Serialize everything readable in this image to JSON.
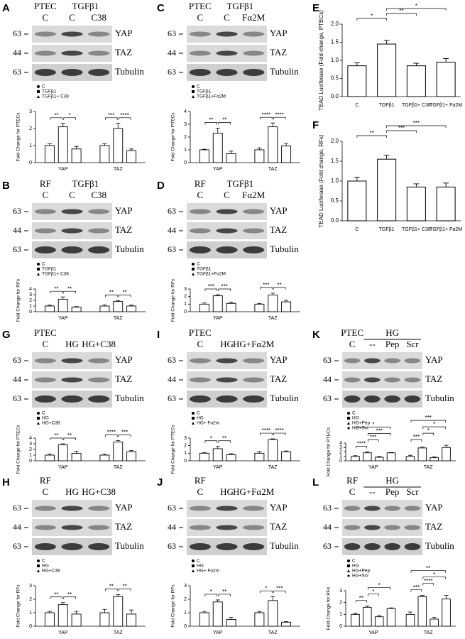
{
  "panels": [
    {
      "letter": "A",
      "header": {
        "top": [
          "PTEC",
          "TGFβ1"
        ],
        "lanes": [
          "C",
          "C",
          "C38"
        ]
      },
      "blot": [
        {
          "marker": "63",
          "protein": "YAP"
        },
        {
          "marker": "44",
          "protein": "TAZ"
        },
        {
          "marker": "63",
          "protein": "Tubulin"
        }
      ],
      "chart_data": {
        "type": "bar",
        "ylabel": "Fold Change for PTECs",
        "categories": [
          "YAP",
          "TAZ"
        ],
        "series": [
          {
            "name": "C",
            "values": [
              1.0,
              1.0
            ],
            "errors": [
              0.1,
              0.1
            ]
          },
          {
            "name": "TGFβ1",
            "values": [
              2.1,
              2.0
            ],
            "errors": [
              0.2,
              0.3
            ]
          },
          {
            "name": "TGFβ1+ C38",
            "values": [
              0.8,
              0.7
            ],
            "errors": [
              0.15,
              0.1
            ]
          }
        ],
        "ylim": [
          0,
          3
        ],
        "yticks": [
          0,
          1,
          2,
          3
        ],
        "significance": [
          [
            "**",
            "*"
          ],
          [
            "***",
            "****"
          ]
        ]
      }
    },
    {
      "letter": "C",
      "header": {
        "top": [
          "PTEC",
          "TGFβ1"
        ],
        "lanes": [
          "C",
          "C",
          "Fα2M"
        ]
      },
      "blot": [
        {
          "marker": "63",
          "protein": "YAP"
        },
        {
          "marker": "44",
          "protein": "TAZ"
        },
        {
          "marker": "63",
          "protein": "Tubulin"
        }
      ],
      "chart_data": {
        "type": "bar",
        "ylabel": "Fold Change for PTECs",
        "categories": [
          "YAP",
          "TAZ"
        ],
        "series": [
          {
            "name": "C",
            "values": [
              1.0,
              1.0
            ],
            "errors": [
              0.05,
              0.15
            ]
          },
          {
            "name": "TGFβ1",
            "values": [
              2.3,
              2.8
            ],
            "errors": [
              0.4,
              0.3
            ]
          },
          {
            "name": "TGFβ1+Fα2M",
            "values": [
              0.7,
              1.3
            ],
            "errors": [
              0.2,
              0.2
            ]
          }
        ],
        "ylim": [
          0,
          4
        ],
        "yticks": [
          0,
          1,
          2,
          3,
          4
        ],
        "significance": [
          [
            "**",
            "**"
          ],
          [
            "****",
            "****"
          ]
        ]
      }
    },
    {
      "letter": "E",
      "chart_data": {
        "type": "bar",
        "ylabel": "TEAD Luciferase (Fold change, PTECs)",
        "categories": [
          "C",
          "TGFβ1",
          "TGFβ1+ C38",
          "TGFβ1+ Fα2M"
        ],
        "values": [
          0.85,
          1.45,
          0.85,
          0.95
        ],
        "errors": [
          0.08,
          0.1,
          0.07,
          0.1
        ],
        "ylim": [
          0,
          2
        ],
        "yticks": [
          {
            "value": 0,
            "label": "0.0"
          },
          {
            "value": 0.5,
            "label": "0.5"
          },
          {
            "value": 1,
            "label": "1.0"
          },
          {
            "value": 1.5,
            "label": "1.5"
          },
          {
            "value": 2,
            "label": "2.0"
          }
        ],
        "significance": [
          "*",
          "**",
          "*"
        ]
      }
    },
    {
      "letter": "B",
      "header": {
        "top": [
          "RF",
          "TGFβ1"
        ],
        "lanes": [
          "C",
          "C",
          "C38"
        ]
      },
      "blot": [
        {
          "marker": "63",
          "protein": "YAP"
        },
        {
          "marker": "44",
          "protein": "TAZ"
        },
        {
          "marker": "63",
          "protein": "Tubulin"
        }
      ],
      "chart_data": {
        "type": "bar",
        "ylabel": "Fold Change for RFs",
        "categories": [
          "YAP",
          "TAZ"
        ],
        "series": [
          {
            "name": "C",
            "values": [
              1.0,
              1.0
            ],
            "errors": [
              0.15,
              0.2
            ]
          },
          {
            "name": "TGFβ1",
            "values": [
              2.2,
              1.8
            ],
            "errors": [
              0.4,
              0.15
            ]
          },
          {
            "name": "TGFβ1+ C38",
            "values": [
              0.8,
              1.0
            ],
            "errors": [
              0.1,
              0.15
            ]
          }
        ],
        "ylim": [
          0,
          4
        ],
        "yticks": [
          0,
          1,
          2,
          3,
          4
        ],
        "significance": [
          [
            "**",
            "**"
          ],
          [
            "**",
            "**"
          ]
        ]
      }
    },
    {
      "letter": "D",
      "header": {
        "top": [
          "RF",
          "TGFβ1"
        ],
        "lanes": [
          "C",
          "C",
          "Fα2M"
        ]
      },
      "blot": [
        {
          "marker": "63",
          "protein": "YAP"
        },
        {
          "marker": "44",
          "protein": "TAZ"
        },
        {
          "marker": "63",
          "protein": "Tubulin"
        }
      ],
      "chart_data": {
        "type": "bar",
        "ylabel": "Fold Change for RFs",
        "categories": [
          "YAP",
          "TAZ"
        ],
        "series": [
          {
            "name": "C",
            "values": [
              1.0,
              1.0
            ],
            "errors": [
              0.15,
              0.1
            ]
          },
          {
            "name": "TGFβ1",
            "values": [
              2.1,
              2.2
            ],
            "errors": [
              0.15,
              0.25
            ]
          },
          {
            "name": "TGFβ1+Fα2M",
            "values": [
              1.1,
              1.3
            ],
            "errors": [
              0.15,
              0.2
            ]
          }
        ],
        "ylim": [
          0,
          3
        ],
        "yticks": [
          0,
          1,
          2,
          3
        ],
        "significance": [
          [
            "***",
            "***"
          ],
          [
            "***",
            "**"
          ]
        ]
      }
    },
    {
      "letter": "F",
      "chart_data": {
        "type": "bar",
        "ylabel": "TEAD Luciferase (Fold change, RFs)",
        "categories": [
          "C",
          "TGFβ1",
          "TGFβ1+ C38",
          "TGFβ1+ Fα2M"
        ],
        "values": [
          1.0,
          1.55,
          0.85,
          0.85
        ],
        "errors": [
          0.1,
          0.1,
          0.08,
          0.1
        ],
        "ylim": [
          0,
          2
        ],
        "yticks": [
          {
            "value": 0,
            "label": "0.0"
          },
          {
            "value": 0.5,
            "label": "0.5"
          },
          {
            "value": 1,
            "label": "1.0"
          },
          {
            "value": 1.5,
            "label": "1.5"
          },
          {
            "value": 2,
            "label": "2.0"
          }
        ],
        "significance": [
          "**",
          "***",
          "***"
        ]
      }
    },
    {
      "letter": "G",
      "header": {
        "top": [
          "PTEC"
        ],
        "lanes": [
          "C",
          "HG",
          "HG+C38"
        ]
      },
      "blot": [
        {
          "marker": "63",
          "protein": "YAP"
        },
        {
          "marker": "44",
          "protein": "TAZ"
        },
        {
          "marker": "63",
          "protein": "Tubulin"
        }
      ],
      "chart_data": {
        "type": "bar",
        "ylabel": "Fold Change for PTECs",
        "categories": [
          "YAP",
          "TAZ"
        ],
        "series": [
          {
            "name": "C",
            "values": [
              1.0,
              1.0
            ],
            "errors": [
              0.2,
              0.2
            ]
          },
          {
            "name": "HG",
            "values": [
              2.8,
              3.3
            ],
            "errors": [
              0.2,
              0.25
            ]
          },
          {
            "name": "HG+C38",
            "values": [
              1.3,
              1.6
            ],
            "errors": [
              0.4,
              0.2
            ]
          }
        ],
        "ylim": [
          0,
          4
        ],
        "yticks": [
          0,
          1,
          2,
          3,
          4
        ],
        "significance": [
          [
            "**",
            "**"
          ],
          [
            "****",
            "***"
          ]
        ]
      }
    },
    {
      "letter": "I",
      "header": {
        "top": [
          "PTEC"
        ],
        "lanes": [
          "C",
          "HG",
          "HG+Fα2M"
        ]
      },
      "blot": [
        {
          "marker": "63",
          "protein": "YAP"
        },
        {
          "marker": "44",
          "protein": "TAZ"
        },
        {
          "marker": "63",
          "protein": "Tubulin"
        }
      ],
      "chart_data": {
        "type": "bar",
        "ylabel": "Fold Change for PTECs",
        "categories": [
          "YAP",
          "TAZ"
        ],
        "series": [
          {
            "name": "C",
            "values": [
              1.0,
              1.0
            ],
            "errors": [
              0.1,
              0.2
            ]
          },
          {
            "name": "HG",
            "values": [
              1.6,
              2.8
            ],
            "errors": [
              0.3,
              0.1
            ]
          },
          {
            "name": "HG+ Fα2m",
            "values": [
              0.8,
              1.2
            ],
            "errors": [
              0.15,
              0.1
            ]
          }
        ],
        "ylim": [
          0,
          3
        ],
        "yticks": [
          0,
          1,
          2,
          3
        ],
        "significance": [
          [
            "*",
            "**"
          ],
          [
            "****",
            "****"
          ]
        ]
      }
    },
    {
      "letter": "K",
      "header": {
        "top": [
          "PTEC",
          "HG"
        ],
        "lanes": [
          "C",
          "--",
          "Pep",
          "Scr"
        ]
      },
      "blot": [
        {
          "marker": "63",
          "protein": "YAP"
        },
        {
          "marker": "44",
          "protein": "TAZ"
        },
        {
          "marker": "63",
          "protein": "Tubulin"
        }
      ],
      "chart_data": {
        "type": "bar",
        "ylabel": "Fold Change for PTECs",
        "categories": [
          "YAP",
          "TAZ"
        ],
        "series": [
          {
            "name": "C",
            "values": [
              1.0,
              1.0
            ],
            "errors": [
              0.15,
              0.25
            ]
          },
          {
            "name": "HG",
            "values": [
              1.8,
              2.9
            ],
            "errors": [
              0.2,
              0.2
            ]
          },
          {
            "name": "HG+Pep",
            "values": [
              0.8,
              0.7
            ],
            "errors": [
              0.15,
              0.2
            ]
          },
          {
            "name": "HG+Scr",
            "values": [
              1.8,
              3.0
            ],
            "errors": [
              0.05,
              0.5
            ]
          }
        ],
        "ylim": [
          0,
          4
        ],
        "yticks": [
          0,
          1,
          2,
          3,
          4
        ],
        "significance": [
          [
            "****",
            "***",
            "***",
            "*"
          ],
          [
            "***",
            "*",
            "*",
            "***"
          ]
        ]
      }
    },
    {
      "letter": "H",
      "header": {
        "top": [
          "RF"
        ],
        "lanes": [
          "C",
          "HG",
          "HG+C38"
        ]
      },
      "blot": [
        {
          "marker": "63",
          "protein": "YAP"
        },
        {
          "marker": "44",
          "protein": "TAZ"
        },
        {
          "marker": "63",
          "protein": "Tubulin"
        }
      ],
      "chart_data": {
        "type": "bar",
        "ylabel": "Fold Change for RFs",
        "categories": [
          "YAP",
          "TAZ"
        ],
        "series": [
          {
            "name": "C",
            "values": [
              1.0,
              1.0
            ],
            "errors": [
              0.1,
              0.25
            ]
          },
          {
            "name": "HG",
            "values": [
              1.6,
              2.2
            ],
            "errors": [
              0.15,
              0.15
            ]
          },
          {
            "name": "HG+C38",
            "values": [
              0.9,
              0.9
            ],
            "errors": [
              0.2,
              0.3
            ]
          }
        ],
        "ylim": [
          0,
          3
        ],
        "yticks": [
          0,
          1,
          2,
          3
        ],
        "significance": [
          [
            "**",
            "**"
          ],
          [
            "**",
            "**"
          ]
        ]
      }
    },
    {
      "letter": "J",
      "header": {
        "top": [
          "RF"
        ],
        "lanes": [
          "C",
          "HG",
          "HG+Fα2M"
        ]
      },
      "blot": [
        {
          "marker": "63",
          "protein": "YAP"
        },
        {
          "marker": "44",
          "protein": "TAZ"
        },
        {
          "marker": "63",
          "protein": "Tubulin"
        }
      ],
      "chart_data": {
        "type": "bar",
        "ylabel": "Fold Change for RFs",
        "categories": [
          "YAP",
          "TAZ"
        ],
        "series": [
          {
            "name": "C",
            "values": [
              1.0,
              1.0
            ],
            "errors": [
              0.1,
              0.1
            ]
          },
          {
            "name": "HG",
            "values": [
              1.8,
              1.9
            ],
            "errors": [
              0.15,
              0.3
            ]
          },
          {
            "name": "HG+ Fα2m",
            "values": [
              0.5,
              0.3
            ],
            "errors": [
              0.15,
              0.05
            ]
          }
        ],
        "ylim": [
          0,
          3
        ],
        "yticks": [
          0,
          1,
          2,
          3
        ],
        "significance": [
          [
            "*",
            "**"
          ],
          [
            "*",
            "***"
          ]
        ]
      }
    },
    {
      "letter": "L",
      "header": {
        "top": [
          "RF",
          "HG"
        ],
        "lanes": [
          "C",
          "--",
          "Pep",
          "Scr"
        ]
      },
      "blot": [
        {
          "marker": "63",
          "protein": "YAP"
        },
        {
          "marker": "44",
          "protein": "TAZ"
        },
        {
          "marker": "63",
          "protein": "Tubulin"
        }
      ],
      "chart_data": {
        "type": "bar",
        "ylabel": "Fold Change for RFs",
        "categories": [
          "YAP",
          "TAZ"
        ],
        "series": [
          {
            "name": "C",
            "values": [
              1.0,
              1.0
            ],
            "errors": [
              0.1,
              0.2
            ]
          },
          {
            "name": "HG",
            "values": [
              1.6,
              2.5
            ],
            "errors": [
              0.1,
              0.1
            ]
          },
          {
            "name": "HG+Pep",
            "values": [
              0.8,
              0.6
            ],
            "errors": [
              0.1,
              0.15
            ]
          },
          {
            "name": "HG+Scr",
            "values": [
              1.5,
              2.3
            ],
            "errors": [
              0.05,
              0.3
            ]
          }
        ],
        "ylim": [
          0,
          3
        ],
        "yticks": [
          0,
          1,
          2,
          3
        ],
        "significance": [
          [
            "**",
            "*",
            "*"
          ],
          [
            "***",
            "****",
            "*",
            "**"
          ]
        ]
      }
    }
  ]
}
